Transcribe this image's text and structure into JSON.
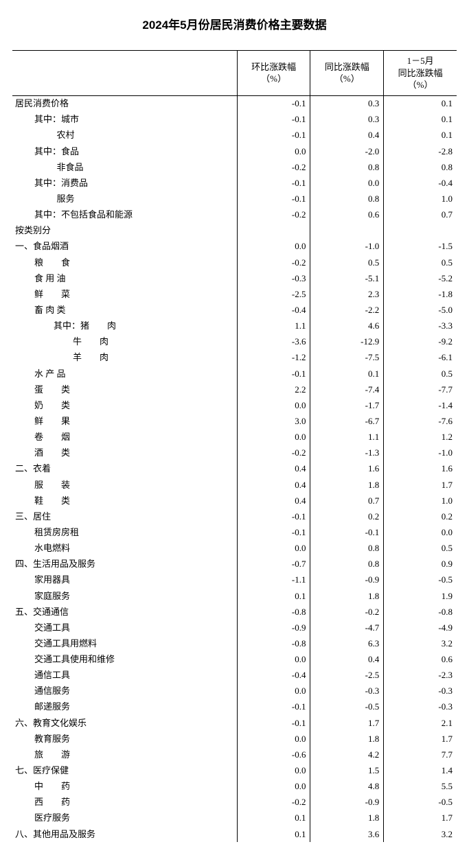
{
  "title": "2024年5月份居民消费价格主要数据",
  "columns": {
    "c0": "",
    "c1": "环比涨跌幅\n（%）",
    "c2": "同比涨跌幅\n（%）",
    "c3": "1－5月\n同比涨跌幅\n（%）"
  },
  "rows": [
    {
      "label": "居民消费价格",
      "indent": 0,
      "v1": "-0.1",
      "v2": "0.3",
      "v3": "0.1"
    },
    {
      "label": "其中：城市",
      "indent": 1,
      "v1": "-0.1",
      "v2": "0.3",
      "v3": "0.1"
    },
    {
      "label": "          农村",
      "indent": 1,
      "v1": "-0.1",
      "v2": "0.4",
      "v3": "0.1"
    },
    {
      "label": "其中：食品",
      "indent": 1,
      "v1": "0.0",
      "v2": "-2.0",
      "v3": "-2.8"
    },
    {
      "label": "          非食品",
      "indent": 1,
      "v1": "-0.2",
      "v2": "0.8",
      "v3": "0.8"
    },
    {
      "label": "其中：消费品",
      "indent": 1,
      "v1": "-0.1",
      "v2": "0.0",
      "v3": "-0.4"
    },
    {
      "label": "          服务",
      "indent": 1,
      "v1": "-0.1",
      "v2": "0.8",
      "v3": "1.0"
    },
    {
      "label": "其中：不包括食品和能源",
      "indent": 1,
      "v1": "-0.2",
      "v2": "0.6",
      "v3": "0.7"
    },
    {
      "label": "按类别分",
      "indent": 0,
      "v1": "",
      "v2": "",
      "v3": ""
    },
    {
      "label": "一、食品烟酒",
      "indent": 0,
      "v1": "0.0",
      "v2": "-1.0",
      "v3": "-1.5"
    },
    {
      "label": "粮　　食",
      "indent": 1,
      "v1": "-0.2",
      "v2": "0.5",
      "v3": "0.5"
    },
    {
      "label": "食 用 油",
      "indent": 1,
      "v1": "-0.3",
      "v2": "-5.1",
      "v3": "-5.2"
    },
    {
      "label": "鲜　　菜",
      "indent": 1,
      "v1": "-2.5",
      "v2": "2.3",
      "v3": "-1.8"
    },
    {
      "label": "畜 肉 类",
      "indent": 1,
      "v1": "-0.4",
      "v2": "-2.2",
      "v3": "-5.0"
    },
    {
      "label": "其中：猪　　肉",
      "indent": 2,
      "v1": "1.1",
      "v2": "4.6",
      "v3": "-3.3"
    },
    {
      "label": "牛　　肉",
      "indent": 3,
      "v1": "-3.6",
      "v2": "-12.9",
      "v3": "-9.2"
    },
    {
      "label": "羊　　肉",
      "indent": 3,
      "v1": "-1.2",
      "v2": "-7.5",
      "v3": "-6.1"
    },
    {
      "label": "水 产 品",
      "indent": 1,
      "v1": "-0.1",
      "v2": "0.1",
      "v3": "0.5"
    },
    {
      "label": "蛋　　类",
      "indent": 1,
      "v1": "2.2",
      "v2": "-7.4",
      "v3": "-7.7"
    },
    {
      "label": "奶　　类",
      "indent": 1,
      "v1": "0.0",
      "v2": "-1.7",
      "v3": "-1.4"
    },
    {
      "label": "鲜　　果",
      "indent": 1,
      "v1": "3.0",
      "v2": "-6.7",
      "v3": "-7.6"
    },
    {
      "label": "卷　　烟",
      "indent": 1,
      "v1": "0.0",
      "v2": "1.1",
      "v3": "1.2"
    },
    {
      "label": "酒　　类",
      "indent": 1,
      "v1": "-0.2",
      "v2": "-1.3",
      "v3": "-1.0"
    },
    {
      "label": "二、衣着",
      "indent": 0,
      "v1": "0.4",
      "v2": "1.6",
      "v3": "1.6"
    },
    {
      "label": "服　　装",
      "indent": 1,
      "v1": "0.4",
      "v2": "1.8",
      "v3": "1.7"
    },
    {
      "label": "鞋　　类",
      "indent": 1,
      "v1": "0.4",
      "v2": "0.7",
      "v3": "1.0"
    },
    {
      "label": "三、居住",
      "indent": 0,
      "v1": "-0.1",
      "v2": "0.2",
      "v3": "0.2"
    },
    {
      "label": "租赁房房租",
      "indent": 1,
      "v1": "-0.1",
      "v2": "-0.1",
      "v3": "0.0"
    },
    {
      "label": "水电燃料",
      "indent": 1,
      "v1": "0.0",
      "v2": "0.8",
      "v3": "0.5"
    },
    {
      "label": "四、生活用品及服务",
      "indent": 0,
      "v1": "-0.7",
      "v2": "0.8",
      "v3": "0.9"
    },
    {
      "label": "家用器具",
      "indent": 1,
      "v1": "-1.1",
      "v2": "-0.9",
      "v3": "-0.5"
    },
    {
      "label": "家庭服务",
      "indent": 1,
      "v1": "0.1",
      "v2": "1.8",
      "v3": "1.9"
    },
    {
      "label": "五、交通通信",
      "indent": 0,
      "v1": "-0.8",
      "v2": "-0.2",
      "v3": "-0.8"
    },
    {
      "label": "交通工具",
      "indent": 1,
      "v1": "-0.9",
      "v2": "-4.7",
      "v3": "-4.9"
    },
    {
      "label": "交通工具用燃料",
      "indent": 1,
      "v1": "-0.8",
      "v2": "6.3",
      "v3": "3.2"
    },
    {
      "label": "交通工具使用和维修",
      "indent": 1,
      "v1": "0.0",
      "v2": "0.4",
      "v3": "0.6"
    },
    {
      "label": "通信工具",
      "indent": 1,
      "v1": "-0.4",
      "v2": "-2.5",
      "v3": "-2.3"
    },
    {
      "label": "通信服务",
      "indent": 1,
      "v1": "0.0",
      "v2": "-0.3",
      "v3": "-0.3"
    },
    {
      "label": "邮递服务",
      "indent": 1,
      "v1": "-0.1",
      "v2": "-0.5",
      "v3": "-0.3"
    },
    {
      "label": "六、教育文化娱乐",
      "indent": 0,
      "v1": "-0.1",
      "v2": "1.7",
      "v3": "2.1"
    },
    {
      "label": "教育服务",
      "indent": 1,
      "v1": "0.0",
      "v2": "1.8",
      "v3": "1.7"
    },
    {
      "label": "旅　　游",
      "indent": 1,
      "v1": "-0.6",
      "v2": "4.2",
      "v3": "7.7"
    },
    {
      "label": "七、医疗保健",
      "indent": 0,
      "v1": "0.0",
      "v2": "1.5",
      "v3": "1.4"
    },
    {
      "label": "中　　药",
      "indent": 1,
      "v1": "0.0",
      "v2": "4.8",
      "v3": "5.5"
    },
    {
      "label": "西　　药",
      "indent": 1,
      "v1": "-0.2",
      "v2": "-0.9",
      "v3": "-0.5"
    },
    {
      "label": "医疗服务",
      "indent": 1,
      "v1": "0.1",
      "v2": "1.8",
      "v3": "1.7"
    },
    {
      "label": "八、其他用品及服务",
      "indent": 0,
      "v1": "0.1",
      "v2": "3.6",
      "v3": "3.2"
    }
  ]
}
